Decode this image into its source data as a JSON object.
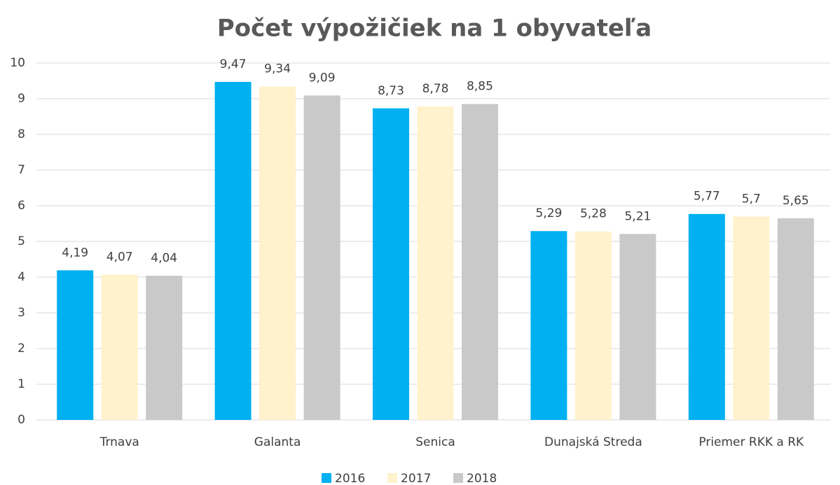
{
  "chart_data": {
    "type": "bar",
    "title": "Počet výpožičiek na 1 obyvateľa",
    "categories": [
      "Trnava",
      "Galanta",
      "Senica",
      "Dunajská Streda",
      "Priemer RKK a RK"
    ],
    "series": [
      {
        "name": "2016",
        "color": "#00b0f0",
        "values": [
          4.19,
          9.47,
          8.73,
          5.29,
          5.77
        ],
        "value_labels": [
          "4,19",
          "9,47",
          "8,73",
          "5,29",
          "5,77"
        ]
      },
      {
        "name": "2017",
        "color": "#fff2cc",
        "values": [
          4.07,
          9.34,
          8.78,
          5.28,
          5.7
        ],
        "value_labels": [
          "4,07",
          "9,34",
          "8,78",
          "5,28",
          "5,7"
        ]
      },
      {
        "name": "2018",
        "color": "#c9c9c9",
        "values": [
          4.04,
          9.09,
          8.85,
          5.21,
          5.65
        ],
        "value_labels": [
          "4,04",
          "9,09",
          "8,85",
          "5,21",
          "5,65"
        ]
      }
    ],
    "ylim": [
      0,
      10
    ],
    "yticks": [
      0,
      1,
      2,
      3,
      4,
      5,
      6,
      7,
      8,
      9,
      10
    ],
    "grid": true,
    "legend": "bottom"
  }
}
